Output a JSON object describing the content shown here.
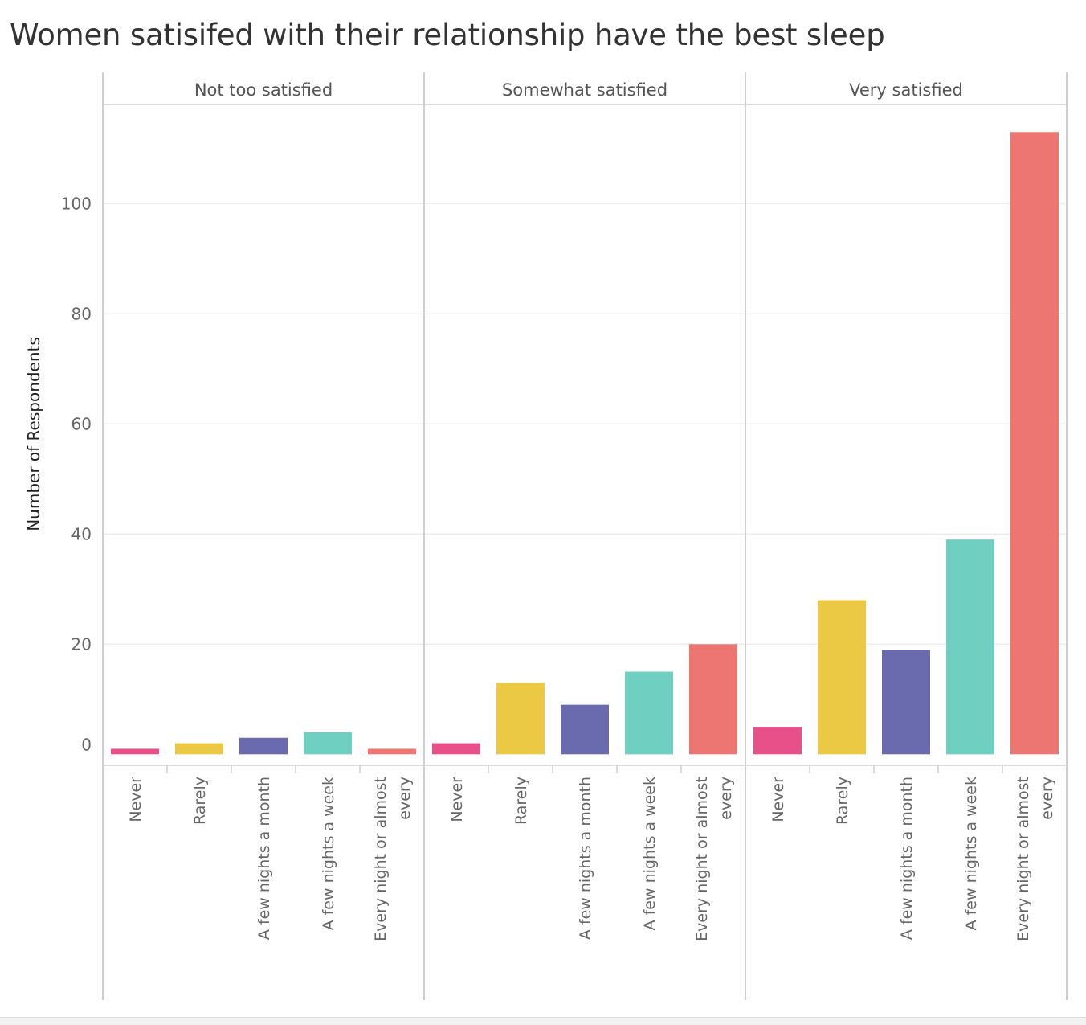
{
  "chart_data": {
    "type": "bar",
    "title": "Women satisifed with their relationship have the best sleep",
    "ylabel": "Number of Respondents",
    "xlabel": "",
    "ylim": [
      -2,
      118
    ],
    "yticks": [
      0,
      20,
      40,
      60,
      80,
      100
    ],
    "grid": true,
    "panels": [
      "Not too satisfied",
      "Somewhat satisfied",
      "Very satisfied"
    ],
    "categories": [
      [
        "Never"
      ],
      [
        "Rarely"
      ],
      [
        "A few nights a month"
      ],
      [
        "A few nights a week"
      ],
      [
        "Every night or almost",
        "every"
      ]
    ],
    "colors": [
      "#e8508a",
      "#ebc944",
      "#6a6aaf",
      "#6fd0c2",
      "#ee7672"
    ],
    "series": [
      {
        "panel": "Not too satisfied",
        "values": [
          1,
          2,
          3,
          4,
          1
        ]
      },
      {
        "panel": "Somewhat satisfied",
        "values": [
          2,
          13,
          9,
          15,
          20
        ]
      },
      {
        "panel": "Very satisfied",
        "values": [
          5,
          28,
          19,
          39,
          113
        ]
      }
    ]
  }
}
